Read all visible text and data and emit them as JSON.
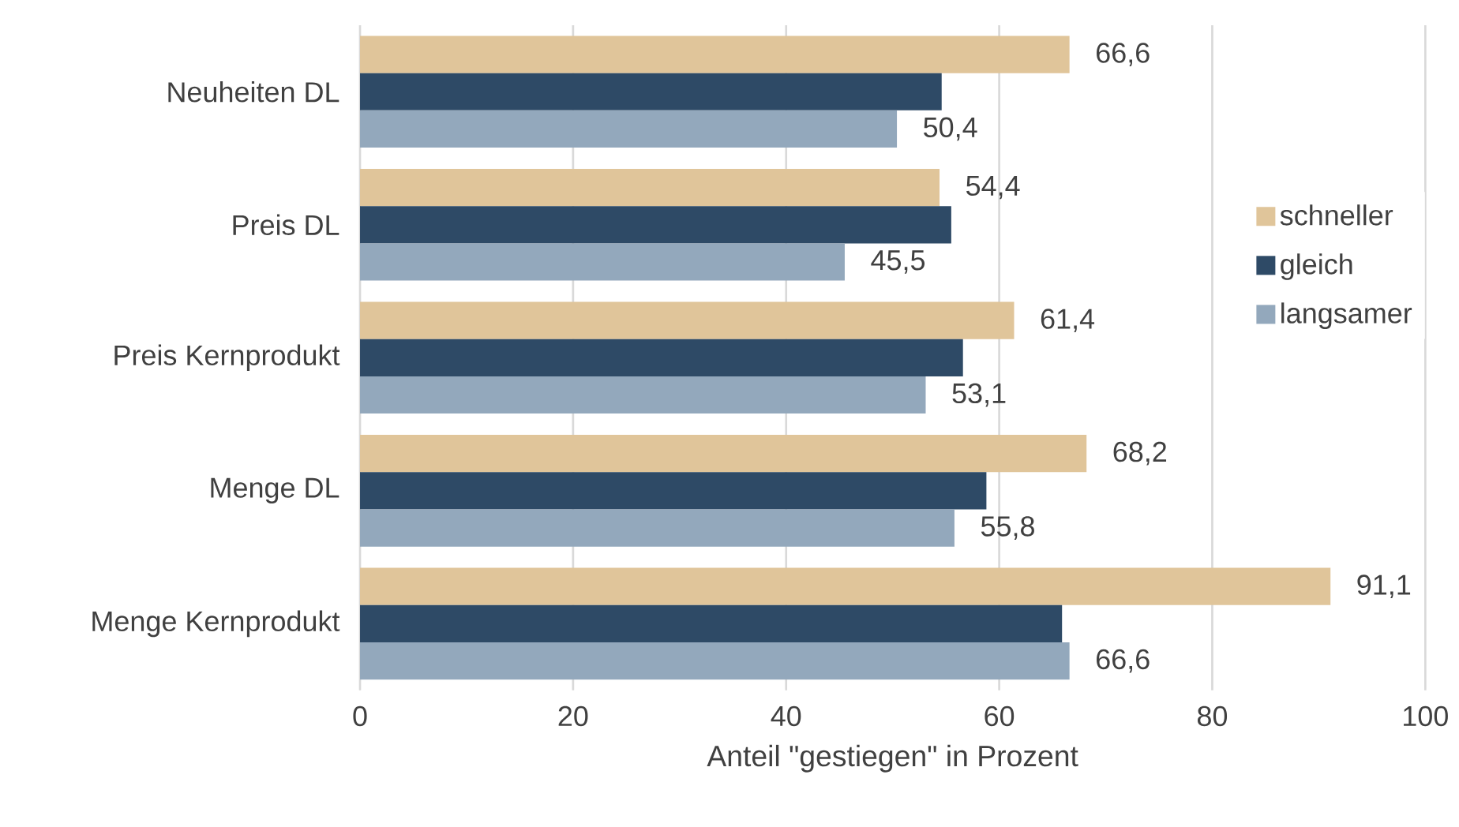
{
  "chart_data": {
    "type": "bar",
    "orientation": "horizontal",
    "xlabel": "Anteil \"gestiegen\" in Prozent",
    "categories": [
      "Neuheiten DL",
      "Preis DL",
      "Preis Kernprodukt",
      "Menge DL",
      "Menge Kernprodukt"
    ],
    "series": [
      {
        "name": "schneller",
        "color": "#e0c59a",
        "values": [
          66.6,
          54.4,
          61.4,
          68.2,
          91.1
        ],
        "value_labels": [
          "66,6",
          "54,4",
          "61,4",
          "68,2",
          "91,1"
        ]
      },
      {
        "name": "gleich",
        "color": "#2e4a66",
        "values": [
          54.6,
          55.5,
          56.6,
          58.8,
          65.9
        ]
      },
      {
        "name": "langsamer",
        "color": "#93a8bc",
        "values": [
          50.4,
          45.5,
          53.1,
          55.8,
          66.6
        ],
        "value_labels": [
          "50,4",
          "45,5",
          "53,1",
          "55,8",
          "66,6"
        ]
      }
    ],
    "xlim": [
      0,
      100
    ],
    "xticks": [
      0,
      20,
      40,
      60,
      80,
      100
    ],
    "grid": "x",
    "legend": "right"
  }
}
